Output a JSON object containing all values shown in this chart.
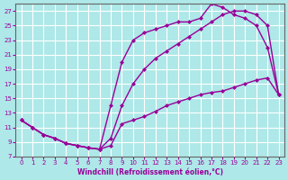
{
  "background_color": "#aee8e8",
  "grid_color": "#ffffff",
  "line_color": "#990099",
  "marker": "D",
  "markersize": 2.5,
  "linewidth": 1.0,
  "xlabel": "Windchill (Refroidissement éolien,°C)",
  "xlim": [
    -0.5,
    23.5
  ],
  "ylim": [
    7,
    28
  ],
  "xticks": [
    0,
    1,
    2,
    3,
    4,
    5,
    6,
    7,
    8,
    9,
    10,
    11,
    12,
    13,
    14,
    15,
    16,
    17,
    18,
    19,
    20,
    21,
    22,
    23
  ],
  "yticks": [
    7,
    9,
    11,
    13,
    15,
    17,
    19,
    21,
    23,
    25,
    27
  ],
  "series1_x": [
    0,
    1,
    2,
    3,
    4,
    5,
    6,
    7,
    8,
    9,
    10,
    11,
    12,
    13,
    14,
    15,
    16,
    17,
    18,
    19,
    20,
    21,
    22,
    23
  ],
  "series1_y": [
    12.0,
    11.0,
    10.0,
    9.5,
    8.8,
    8.5,
    8.2,
    8.0,
    8.5,
    11.5,
    12.0,
    12.5,
    13.2,
    14.0,
    14.5,
    15.0,
    15.5,
    15.8,
    16.0,
    16.5,
    17.0,
    17.5,
    17.8,
    15.5
  ],
  "series2_x": [
    0,
    1,
    2,
    3,
    4,
    5,
    6,
    7,
    8,
    9,
    10,
    11,
    12,
    13,
    14,
    15,
    16,
    17,
    18,
    19,
    20,
    21,
    22,
    23
  ],
  "series2_y": [
    12.0,
    11.0,
    10.0,
    9.5,
    8.8,
    8.5,
    8.2,
    8.0,
    9.5,
    14.0,
    17.0,
    19.0,
    20.5,
    21.5,
    22.5,
    23.5,
    24.5,
    25.5,
    26.5,
    27.0,
    27.0,
    26.5,
    25.0,
    15.5
  ],
  "series3_x": [
    0,
    1,
    2,
    3,
    4,
    5,
    6,
    7,
    8,
    9,
    10,
    11,
    12,
    13,
    14,
    15,
    16,
    17,
    18,
    19,
    20,
    21,
    22,
    23
  ],
  "series3_y": [
    12.0,
    11.0,
    10.0,
    9.5,
    8.8,
    8.5,
    8.2,
    8.0,
    14.0,
    20.0,
    23.0,
    24.0,
    24.5,
    25.0,
    25.5,
    25.5,
    26.0,
    28.0,
    27.5,
    26.5,
    26.0,
    25.0,
    22.0,
    15.5
  ]
}
